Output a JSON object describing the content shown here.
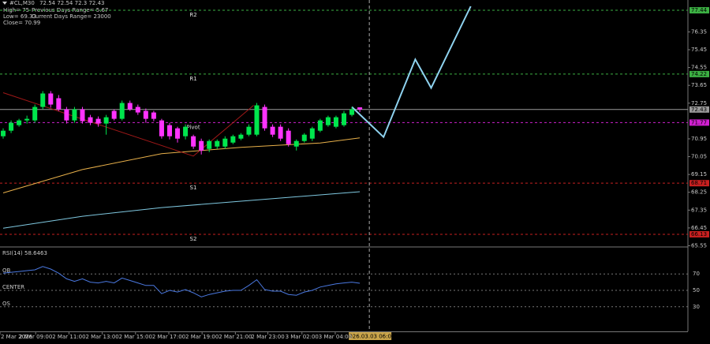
{
  "chart_data": [
    {
      "type": "candlestick",
      "title": "#CL,M30",
      "info": [
        "High= 75",
        "Previous Days Range= 5.67",
        "Low= 69.33",
        "Current Days Range= 23000",
        "Close= 70.99"
      ],
      "up_color": "#00e64d",
      "down_color": "#ff33ff",
      "candles": {
        "open": [
          71.08,
          71.36,
          71.64,
          71.88,
          71.88,
          72.56,
          73.24,
          73.0,
          72.44,
          71.88,
          72.44,
          72.04,
          71.96,
          71.72,
          72.36,
          71.96,
          72.76,
          72.56,
          72.36,
          72.28,
          71.88,
          71.64,
          71.48,
          71.08,
          71.08,
          70.84,
          70.44,
          70.56,
          70.56,
          70.76,
          70.96,
          71.16,
          71.16,
          72.56,
          71.56,
          71.56,
          71.36,
          70.56,
          70.84,
          70.96,
          71.36,
          71.64,
          71.56,
          71.64,
          72.16,
          72.54
        ],
        "high": [
          71.48,
          71.88,
          71.96,
          72.12,
          72.68,
          73.36,
          73.36,
          73.16,
          72.56,
          72.56,
          72.56,
          72.16,
          72.08,
          72.16,
          72.44,
          72.88,
          72.88,
          72.68,
          72.48,
          72.36,
          71.96,
          71.76,
          71.56,
          71.68,
          71.16,
          70.96,
          70.92,
          70.92,
          71.08,
          71.16,
          71.24,
          71.68,
          72.76,
          72.68,
          71.68,
          71.68,
          71.48,
          70.92,
          71.24,
          71.56,
          71.96,
          72.12,
          72.12,
          72.36,
          72.56,
          72.54
        ],
        "low": [
          70.96,
          71.24,
          71.56,
          71.72,
          71.76,
          72.44,
          72.52,
          72.36,
          71.72,
          71.76,
          71.72,
          71.64,
          71.56,
          71.16,
          71.88,
          71.88,
          72.36,
          72.16,
          71.76,
          71.84,
          70.96,
          70.92,
          70.76,
          70.92,
          70.44,
          70.16,
          70.28,
          70.44,
          70.44,
          70.68,
          70.88,
          71.08,
          71.08,
          71.36,
          71.04,
          70.84,
          70.56,
          70.36,
          70.76,
          70.84,
          71.28,
          71.56,
          71.48,
          71.56,
          72.08,
          72.3
        ],
        "close": [
          71.36,
          71.76,
          71.88,
          71.96,
          72.56,
          73.24,
          72.68,
          72.44,
          71.88,
          72.44,
          71.84,
          71.76,
          71.72,
          72.04,
          71.96,
          72.76,
          72.44,
          72.28,
          71.96,
          71.96,
          71.08,
          71.08,
          70.96,
          71.56,
          70.56,
          70.36,
          70.84,
          70.84,
          70.96,
          71.08,
          71.16,
          71.56,
          72.64,
          71.48,
          71.16,
          70.96,
          70.68,
          70.84,
          71.16,
          71.48,
          71.88,
          72.04,
          72.04,
          72.24,
          72.44,
          72.43
        ]
      },
      "overlays": [
        {
          "color": "#e8b04a",
          "width": 1,
          "x": [
            0,
            10,
            20,
            30,
            40,
            45
          ],
          "values": [
            68.22,
            69.4,
            70.2,
            70.52,
            70.74,
            71.0
          ]
        },
        {
          "color": "#7fc8e0",
          "width": 1,
          "x": [
            0,
            10,
            20,
            30,
            40,
            45
          ],
          "values": [
            66.44,
            67.04,
            67.48,
            67.8,
            68.12,
            68.28
          ]
        },
        {
          "color": "#a01818",
          "width": 1,
          "x": [
            0,
            24,
            31.6
          ],
          "values": [
            73.28,
            70.08,
            72.64
          ]
        },
        {
          "color": "#8fd3f0",
          "width": 2,
          "x": [
            44,
            48,
            52,
            54,
            59
          ],
          "values": [
            72.56,
            71.04,
            74.96,
            73.52,
            77.64
          ]
        }
      ],
      "levels": [
        {
          "label": "R2",
          "value": 77.44,
          "color": "#3cb043"
        },
        {
          "label": "R1",
          "value": 74.22,
          "color": "#3cb043"
        },
        {
          "label": "Pivot",
          "value": 71.77,
          "color": "#d020d0"
        },
        {
          "label": "S1",
          "value": 68.71,
          "color": "#c82020"
        },
        {
          "label": "S2",
          "value": 66.13,
          "color": "#c82020"
        }
      ],
      "ylim": [
        65.53,
        77.96
      ],
      "yticks": [
        76.35,
        75.45,
        74.55,
        73.65,
        72.75,
        70.95,
        70.05,
        69.15,
        68.25,
        67.35,
        66.45,
        65.55
      ],
      "xlim": [
        -0.4,
        86.4
      ],
      "xticks": [
        {
          "value": -0.4,
          "label": "2 Mar 2026"
        },
        {
          "value": 4.1,
          "label": "2 Mar 09:00"
        },
        {
          "value": 8.3,
          "label": "2 Mar 11:00"
        },
        {
          "value": 12.5,
          "label": "2 Mar 13:00"
        },
        {
          "value": 16.7,
          "label": "2 Mar 15:00"
        },
        {
          "value": 20.9,
          "label": "2 Mar 17:00"
        },
        {
          "value": 25.1,
          "label": "2 Mar 19:00"
        },
        {
          "value": 29.3,
          "label": "2 Mar 21:00"
        },
        {
          "value": 33.4,
          "label": "2 Mar 23:00"
        },
        {
          "value": 37.7,
          "label": "3 Mar 02:00"
        },
        {
          "value": 41.9,
          "label": "3 Mar 04:00"
        }
      ],
      "cursor": {
        "value": 46.2,
        "label": "2026.03.03 06:00"
      }
    },
    {
      "type": "line",
      "title": "RSI(14)",
      "color": "#4a78e0",
      "values": [
        71,
        72,
        73,
        74,
        75,
        79,
        76,
        71,
        64,
        61,
        64,
        60,
        59,
        61,
        59,
        65,
        62,
        59,
        56,
        56,
        46,
        50,
        48,
        51,
        47,
        42,
        45,
        47,
        49,
        50,
        50,
        56,
        63,
        51,
        49,
        49,
        45,
        44,
        48,
        50,
        54,
        56,
        58,
        59,
        60,
        58.6463
      ],
      "ylim": [
        0,
        100
      ],
      "yticks": [
        70,
        50,
        30
      ],
      "ytick_names": [
        "OB",
        "CENTER",
        "OS"
      ]
    }
  ]
}
